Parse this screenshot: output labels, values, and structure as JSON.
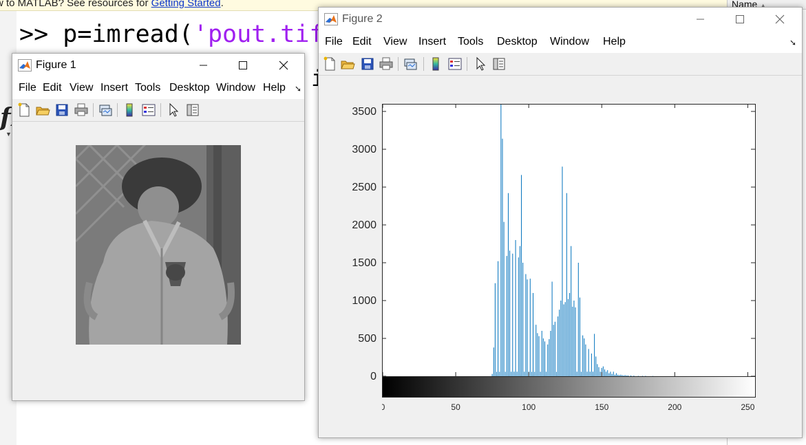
{
  "command_window": {
    "intro_text": "w to MATLAB? See resources for ",
    "intro_link": "Getting Started",
    "intro_end": ".",
    "prompt": ">>",
    "code_before": " p=imread(",
    "code_string": "'pout.tif'",
    "fx_glyph": "fx",
    "stray_char": "i"
  },
  "workspace": {
    "name_header": "Name"
  },
  "figure1": {
    "title": "Figure 1",
    "menu": [
      "File",
      "Edit",
      "View",
      "Insert",
      "Tools",
      "Desktop",
      "Window",
      "Help"
    ],
    "image": {
      "content": "grayscale photo of a child in a jacket, low contrast",
      "tone": "#7a7a7a"
    }
  },
  "figure2": {
    "title": "Figure 2",
    "menu": [
      "File",
      "Edit",
      "View",
      "Insert",
      "Tools",
      "Desktop",
      "Window",
      "Help"
    ]
  },
  "toolbar_icons": [
    "new-figure-icon",
    "open-file-icon",
    "save-icon",
    "print-icon",
    "link-plot-icon",
    "colorbar-icon",
    "legend-icon",
    "pointer-icon",
    "property-inspector-icon"
  ],
  "colors": {
    "stem": "#0072bd",
    "matlab_string": "#a020f0",
    "link": "#0b36c9"
  },
  "chart_data": {
    "type": "bar",
    "title": "",
    "xlabel": "",
    "ylabel": "",
    "xlim": [
      0,
      255
    ],
    "ylim": [
      0,
      3600
    ],
    "yticks": [
      0,
      500,
      1000,
      1500,
      2000,
      2500,
      3000,
      3500
    ],
    "xticks": [
      0,
      50,
      100,
      150,
      200,
      250
    ],
    "colorbar": "grayscale 0 to 255 below the axis",
    "series": [
      {
        "x": [
          75,
          76,
          77,
          78,
          79,
          80,
          81,
          82,
          83,
          84,
          85,
          86,
          87,
          88,
          89,
          90,
          91,
          92,
          93,
          94,
          95,
          96,
          97,
          98,
          99,
          100,
          101,
          102,
          103,
          104,
          105,
          106,
          107,
          108,
          109,
          110,
          111,
          112,
          113,
          114,
          115,
          116,
          117,
          118,
          119,
          120,
          121,
          122,
          123,
          124,
          125,
          126,
          127,
          128,
          129,
          130,
          131,
          132,
          133,
          134,
          135,
          136,
          137,
          138,
          139,
          140,
          141,
          142,
          143,
          144,
          145,
          146,
          147,
          148,
          149,
          150,
          151,
          152,
          153,
          154,
          155,
          156,
          157,
          158,
          159,
          160,
          161,
          162,
          163,
          164,
          165,
          166,
          167,
          168,
          170,
          172,
          175,
          178,
          180,
          185
        ],
        "values": [
          30,
          380,
          1230,
          60,
          1520,
          60,
          3630,
          3140,
          2040,
          60,
          1590,
          2420,
          1660,
          60,
          1620,
          60,
          1800,
          60,
          1570,
          1720,
          2660,
          1500,
          60,
          1350,
          1280,
          60,
          1290,
          60,
          1100,
          60,
          680,
          570,
          530,
          60,
          600,
          500,
          460,
          60,
          420,
          490,
          600,
          1250,
          680,
          720,
          60,
          790,
          880,
          1000,
          2770,
          950,
          980,
          2420,
          1020,
          1100,
          1720,
          920,
          1000,
          910,
          60,
          1500,
          1040,
          60,
          540,
          500,
          420,
          60,
          360,
          60,
          300,
          60,
          560,
          260,
          160,
          120,
          60,
          110,
          130,
          90,
          60,
          80,
          40,
          60,
          30,
          60,
          20,
          40,
          20,
          15,
          20,
          15,
          10,
          15,
          10,
          10,
          10,
          8,
          5,
          5,
          5,
          3
        ]
      }
    ]
  }
}
